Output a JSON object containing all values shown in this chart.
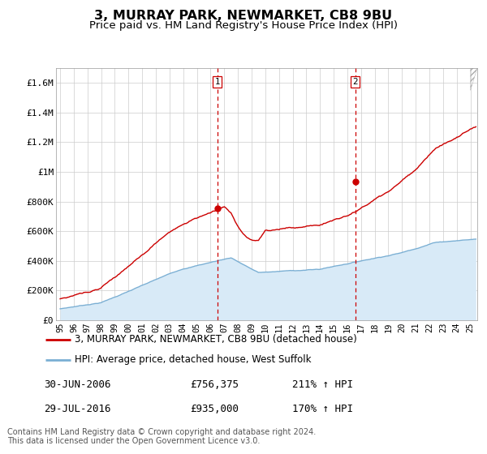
{
  "title": "3, MURRAY PARK, NEWMARKET, CB8 9BU",
  "subtitle": "Price paid vs. HM Land Registry's House Price Index (HPI)",
  "ylim": [
    0,
    1700000
  ],
  "yticks": [
    0,
    200000,
    400000,
    600000,
    800000,
    1000000,
    1200000,
    1400000,
    1600000
  ],
  "ytick_labels": [
    "£0",
    "£200K",
    "£400K",
    "£600K",
    "£800K",
    "£1M",
    "£1.2M",
    "£1.4M",
    "£1.6M"
  ],
  "xlim_start": 1994.7,
  "xlim_end": 2025.5,
  "xtick_years": [
    1995,
    1996,
    1997,
    1998,
    1999,
    2000,
    2001,
    2002,
    2003,
    2004,
    2005,
    2006,
    2007,
    2008,
    2009,
    2010,
    2011,
    2012,
    2013,
    2014,
    2015,
    2016,
    2017,
    2018,
    2019,
    2020,
    2021,
    2022,
    2023,
    2024,
    2025
  ],
  "xtick_labels": [
    "95",
    "96",
    "97",
    "98",
    "99",
    "00",
    "01",
    "02",
    "03",
    "04",
    "05",
    "06",
    "07",
    "08",
    "09",
    "10",
    "11",
    "12",
    "13",
    "14",
    "15",
    "16",
    "17",
    "18",
    "19",
    "20",
    "21",
    "22",
    "23",
    "24",
    "25"
  ],
  "red_line_color": "#cc0000",
  "blue_line_color": "#7aafd4",
  "blue_fill_color": "#d8eaf7",
  "dashed_line_color": "#cc0000",
  "grid_color": "#cccccc",
  "background_color": "#ffffff",
  "sale1_x": 2006.5,
  "sale1_y": 756375,
  "sale2_x": 2016.58,
  "sale2_y": 935000,
  "legend_red_label": "3, MURRAY PARK, NEWMARKET, CB8 9BU (detached house)",
  "legend_blue_label": "HPI: Average price, detached house, West Suffolk",
  "sale1_date": "30-JUN-2006",
  "sale1_price": "£756,375",
  "sale1_hpi": "211% ↑ HPI",
  "sale2_date": "29-JUL-2016",
  "sale2_price": "£935,000",
  "sale2_hpi": "170% ↑ HPI",
  "footer": "Contains HM Land Registry data © Crown copyright and database right 2024.\nThis data is licensed under the Open Government Licence v3.0."
}
